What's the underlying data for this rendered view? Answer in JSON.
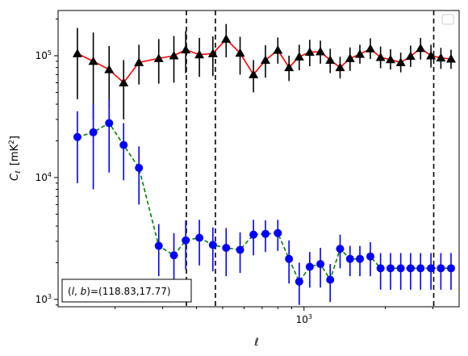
{
  "chart_data": {
    "type": "scatter",
    "xlabel": "ℓ",
    "ylabel": "C",
    "ylabel_sub": "ℓ",
    "ylabel_unit": "[mK",
    "ylabel_unit_sup": "2",
    "ylabel_unit_end": "]",
    "x_scale": "log",
    "y_scale": "log",
    "xlim": [
      123,
      3750
    ],
    "ylim": [
      870,
      235000
    ],
    "x_ticks": [
      {
        "value": 1000,
        "base": "10",
        "exp": "3"
      }
    ],
    "y_ticks": [
      {
        "value": 1000,
        "base": "10",
        "exp": "3"
      },
      {
        "value": 10000,
        "base": "10",
        "exp": "4"
      },
      {
        "value": 100000,
        "base": "10",
        "exp": "5"
      }
    ],
    "legend_position": "top-right",
    "annotation": {
      "text": "(l, b)=(118.83,17.77)",
      "math_open": "(",
      "math_l": "l",
      "math_comma": ", ",
      "math_b": "b",
      "math_close": ")",
      "value_text": "=(118.83,17.77)",
      "position": "bottom-left"
    },
    "vlines": [
      367,
      470,
      3020
    ],
    "series": [
      {
        "marker": "triangle",
        "marker_color": "#000000",
        "line_color": "#ff0000",
        "line_style": "solid",
        "error_color": "#000000",
        "x": [
          145,
          166,
          190,
          215,
          245,
          290,
          330,
          365,
          410,
          460,
          515,
          580,
          650,
          720,
          800,
          880,
          960,
          1050,
          1150,
          1250,
          1360,
          1480,
          1610,
          1760,
          1920,
          2090,
          2280,
          2480,
          2700,
          2950,
          3210,
          3500
        ],
        "y": [
          104000,
          90000,
          77000,
          60000,
          88000,
          95000,
          100000,
          112000,
          102000,
          104000,
          137000,
          105000,
          70000,
          92000,
          111000,
          80000,
          98000,
          107000,
          108000,
          92000,
          80000,
          95000,
          103000,
          114000,
          97000,
          93000,
          88000,
          99000,
          115000,
          100000,
          96000,
          94000
        ],
        "err_low": [
          60000,
          60000,
          40000,
          30000,
          30000,
          36000,
          40000,
          40000,
          35000,
          36000,
          40000,
          35000,
          20000,
          26000,
          25000,
          18000,
          22000,
          25000,
          22000,
          20000,
          15000,
          20000,
          17000,
          20000,
          18000,
          16000,
          15000,
          18000,
          22000,
          20000,
          18000,
          16000
        ],
        "err_high": [
          65000,
          65000,
          43000,
          32000,
          35000,
          42000,
          45000,
          47000,
          38000,
          40000,
          45000,
          38000,
          22000,
          30000,
          30000,
          20000,
          25000,
          28000,
          25000,
          22000,
          18000,
          22000,
          20000,
          25000,
          22000,
          20000,
          18000,
          22000,
          25000,
          23000,
          20000,
          18000
        ]
      },
      {
        "marker": "circle",
        "marker_color": "#0000ff",
        "line_color": "#008000",
        "line_style": "dashed",
        "error_color": "#0000ff",
        "x": [
          145,
          166,
          190,
          215,
          245,
          290,
          330,
          365,
          410,
          460,
          515,
          580,
          650,
          720,
          800,
          880,
          960,
          1050,
          1150,
          1250,
          1360,
          1480,
          1610,
          1760,
          1920,
          2090,
          2280,
          2480,
          2700,
          2950,
          3210,
          3500
        ],
        "y": [
          21500,
          23500,
          28000,
          18500,
          12000,
          2750,
          2300,
          3050,
          3200,
          2800,
          2650,
          2550,
          3400,
          3450,
          3500,
          2150,
          1400,
          1850,
          1950,
          1450,
          2600,
          2150,
          2150,
          2250,
          1800,
          1800,
          1800,
          1800,
          1800,
          1800,
          1800,
          1800
        ],
        "err_low": [
          12500,
          15500,
          17000,
          9000,
          6000,
          1200,
          1100,
          1300,
          1300,
          1100,
          1100,
          900,
          1100,
          1000,
          1000,
          800,
          500,
          600,
          700,
          500,
          800,
          600,
          600,
          700,
          600,
          600,
          600,
          600,
          600,
          600,
          600,
          600
        ],
        "err_high": [
          13500,
          16500,
          16000,
          9500,
          6000,
          1400,
          1200,
          1400,
          1300,
          1100,
          1200,
          1000,
          1100,
          1000,
          1000,
          900,
          600,
          600,
          700,
          500,
          800,
          600,
          600,
          700,
          600,
          600,
          600,
          600,
          600,
          600,
          600,
          600
        ]
      }
    ]
  }
}
